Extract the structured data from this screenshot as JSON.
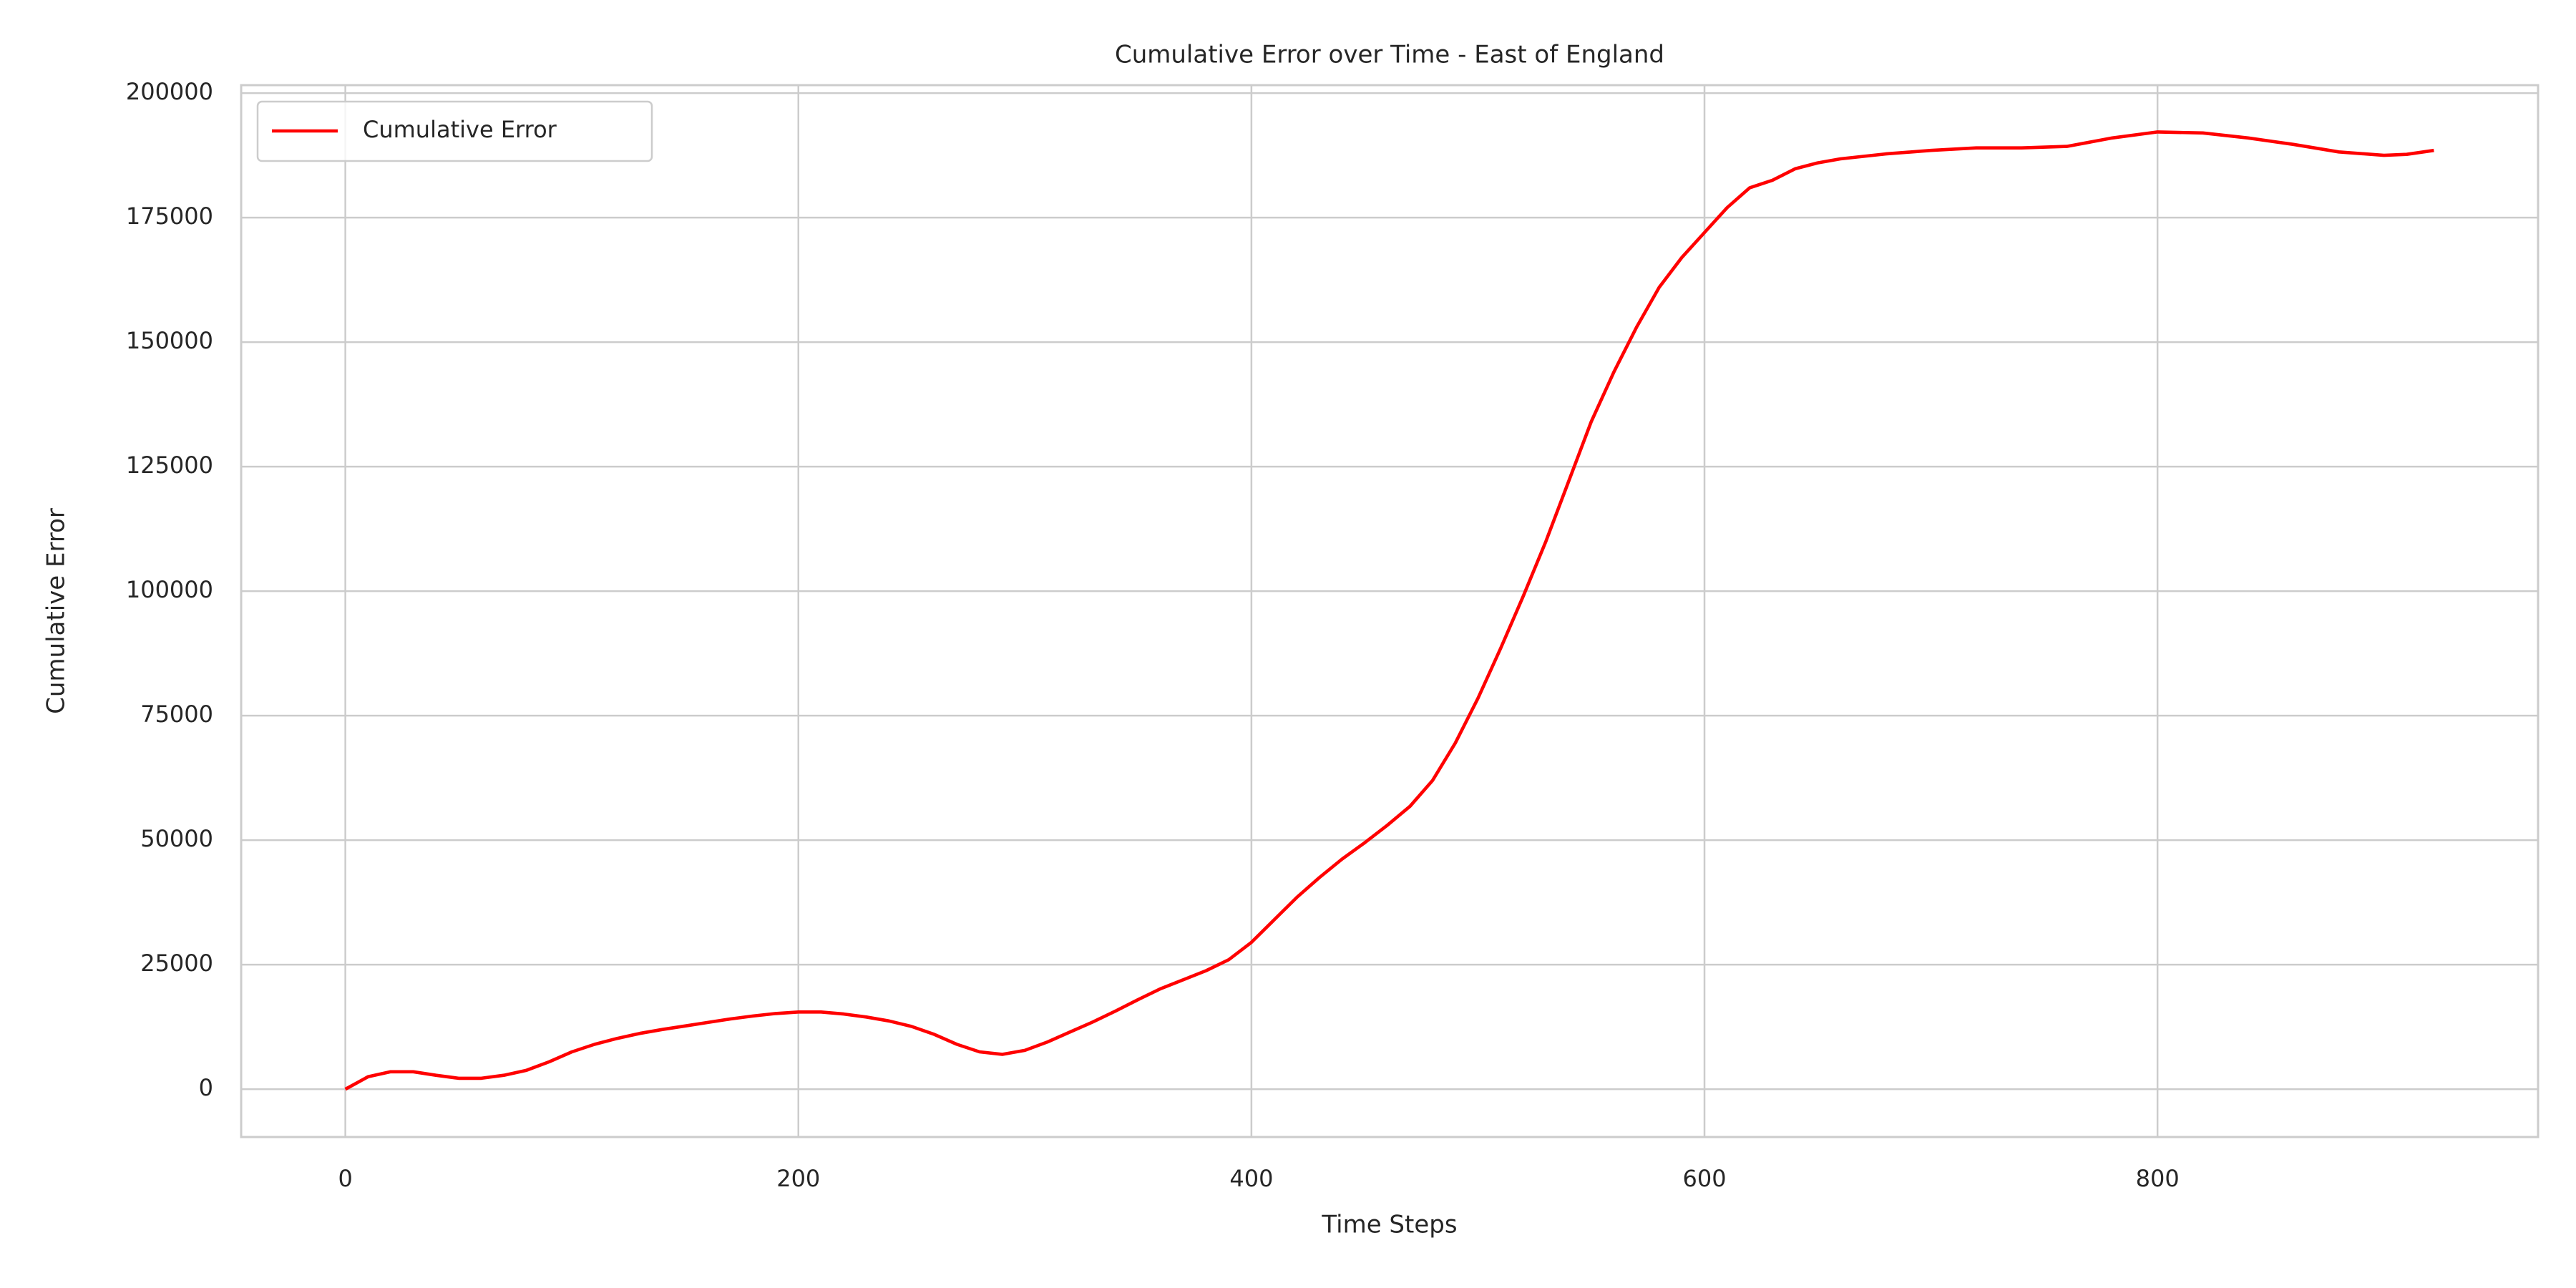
{
  "chart_data": {
    "type": "line",
    "title": "Cumulative Error over Time - East of England",
    "x_label": "Time Steps",
    "y_label": "Cumulative Error",
    "x": [
      0,
      10,
      20,
      30,
      40,
      50,
      60,
      70,
      80,
      90,
      100,
      110,
      120,
      130,
      140,
      150,
      160,
      170,
      180,
      190,
      200,
      210,
      220,
      230,
      240,
      250,
      260,
      270,
      280,
      290,
      300,
      310,
      320,
      330,
      340,
      350,
      360,
      370,
      380,
      390,
      400,
      410,
      420,
      430,
      440,
      450,
      460,
      470,
      480,
      490,
      500,
      510,
      520,
      530,
      540,
      550,
      560,
      570,
      580,
      590,
      600,
      610,
      620,
      630,
      640,
      650,
      660,
      680,
      700,
      720,
      740,
      760,
      780,
      800,
      820,
      840,
      860,
      880,
      900,
      910,
      922
    ],
    "series": [
      {
        "name": "Cumulative Error",
        "color": "#ff0000",
        "values": [
          0,
          2500,
          3500,
          3500,
          2800,
          2200,
          2200,
          2800,
          3800,
          5500,
          7500,
          9000,
          10200,
          11200,
          12000,
          12700,
          13400,
          14100,
          14700,
          15200,
          15500,
          15500,
          15100,
          14500,
          13700,
          12600,
          11000,
          9000,
          7500,
          7000,
          7800,
          9500,
          11500,
          13500,
          15700,
          18000,
          20200,
          22000,
          23800,
          26000,
          29500,
          34000,
          38500,
          42500,
          46200,
          49500,
          53000,
          56800,
          62000,
          69500,
          78500,
          88500,
          99000,
          110000,
          122000,
          134000,
          144000,
          153000,
          161000,
          167000,
          172000,
          177000,
          181000,
          182500,
          184800,
          186000,
          186800,
          187800,
          188500,
          189000,
          189000,
          189300,
          191000,
          192200,
          192000,
          191000,
          189700,
          188200,
          187500,
          187700,
          188500
        ]
      }
    ],
    "xlim": [
      -46,
      968
    ],
    "ylim": [
      -9600,
      201600
    ],
    "xticks": [
      0,
      200,
      400,
      600,
      800
    ],
    "yticks": [
      0,
      25000,
      50000,
      75000,
      100000,
      125000,
      150000,
      175000,
      200000
    ],
    "grid": true,
    "legend": "upper left"
  }
}
